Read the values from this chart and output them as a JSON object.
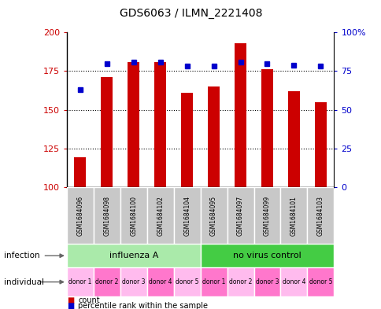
{
  "title": "GDS6063 / ILMN_2221408",
  "samples": [
    "GSM1684096",
    "GSM1684098",
    "GSM1684100",
    "GSM1684102",
    "GSM1684104",
    "GSM1684095",
    "GSM1684097",
    "GSM1684099",
    "GSM1684101",
    "GSM1684103"
  ],
  "counts": [
    119,
    171,
    181,
    181,
    161,
    165,
    193,
    176,
    162,
    155
  ],
  "percentiles": [
    63,
    80,
    81,
    81,
    78,
    78,
    81,
    80,
    79,
    78
  ],
  "ylim_left": [
    100,
    200
  ],
  "ylim_right": [
    0,
    100
  ],
  "yticks_left": [
    100,
    125,
    150,
    175,
    200
  ],
  "yticks_right": [
    0,
    25,
    50,
    75,
    100
  ],
  "infection_groups": [
    {
      "label": "influenza A",
      "start": 0,
      "end": 5,
      "color": "#AAEAAA"
    },
    {
      "label": "no virus control",
      "start": 5,
      "end": 10,
      "color": "#44CC44"
    }
  ],
  "individual_labels": [
    "donor 1",
    "donor 2",
    "donor 3",
    "donor 4",
    "donor 5",
    "donor 1",
    "donor 2",
    "donor 3",
    "donor 4",
    "donor 5"
  ],
  "ind_colors_light": "#FFAAEE",
  "ind_colors_dark": "#FF66CC",
  "bar_color": "#CC0000",
  "dot_color": "#0000CC",
  "sample_box_color": "#C8C8C8",
  "legend_count_color": "#CC0000",
  "legend_pct_color": "#0000CC",
  "arrow_color": "#666666"
}
